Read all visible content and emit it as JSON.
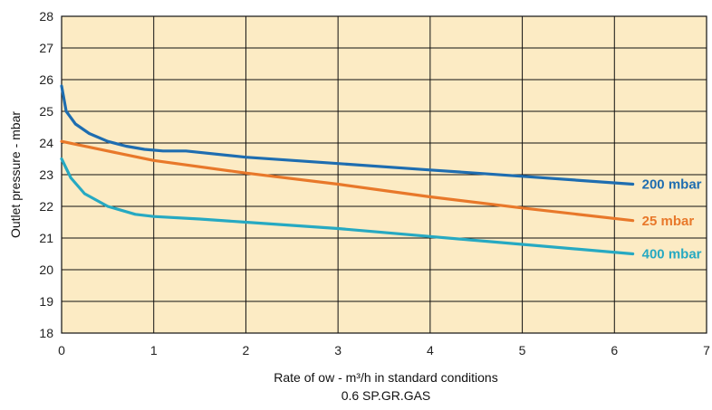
{
  "chart_data": {
    "type": "line",
    "xlabel": "Rate of   ow - m³/h in standard conditions",
    "xlabel_line2": "0.6 SP.GR.GAS",
    "ylabel": "Outlet pressure - mbar",
    "xlim": [
      0,
      7
    ],
    "ylim": [
      18,
      28
    ],
    "x_ticks": [
      "0",
      "1",
      "2",
      "3",
      "4",
      "5",
      "6",
      "7"
    ],
    "y_ticks": [
      "18",
      "19",
      "20",
      "21",
      "22",
      "23",
      "24",
      "25",
      "26",
      "27",
      "28"
    ],
    "grid": true,
    "plot_background": "#fcebc4",
    "series": [
      {
        "name": "200 mbar",
        "color": "#1e6db0",
        "points": [
          [
            0,
            25.8
          ],
          [
            0.05,
            25.0
          ],
          [
            0.15,
            24.6
          ],
          [
            0.3,
            24.3
          ],
          [
            0.5,
            24.05
          ],
          [
            0.7,
            23.9
          ],
          [
            0.9,
            23.8
          ],
          [
            1.1,
            23.75
          ],
          [
            1.35,
            23.75
          ],
          [
            2.0,
            23.55
          ],
          [
            3.0,
            23.35
          ],
          [
            4.0,
            23.15
          ],
          [
            5.0,
            22.95
          ],
          [
            6.2,
            22.7
          ]
        ]
      },
      {
        "name": "25 mbar",
        "color": "#e8782a",
        "points": [
          [
            0,
            24.05
          ],
          [
            0.5,
            23.75
          ],
          [
            1.0,
            23.45
          ],
          [
            2.0,
            23.05
          ],
          [
            3.0,
            22.7
          ],
          [
            4.0,
            22.3
          ],
          [
            5.0,
            21.95
          ],
          [
            6.2,
            21.55
          ]
        ]
      },
      {
        "name": "400 mbar",
        "color": "#26a9c2",
        "points": [
          [
            0,
            23.5
          ],
          [
            0.1,
            22.9
          ],
          [
            0.25,
            22.4
          ],
          [
            0.5,
            22.0
          ],
          [
            0.8,
            21.75
          ],
          [
            1.0,
            21.68
          ],
          [
            1.5,
            21.6
          ],
          [
            2.0,
            21.5
          ],
          [
            3.0,
            21.3
          ],
          [
            4.0,
            21.05
          ],
          [
            5.0,
            20.8
          ],
          [
            6.2,
            20.5
          ]
        ]
      }
    ]
  }
}
